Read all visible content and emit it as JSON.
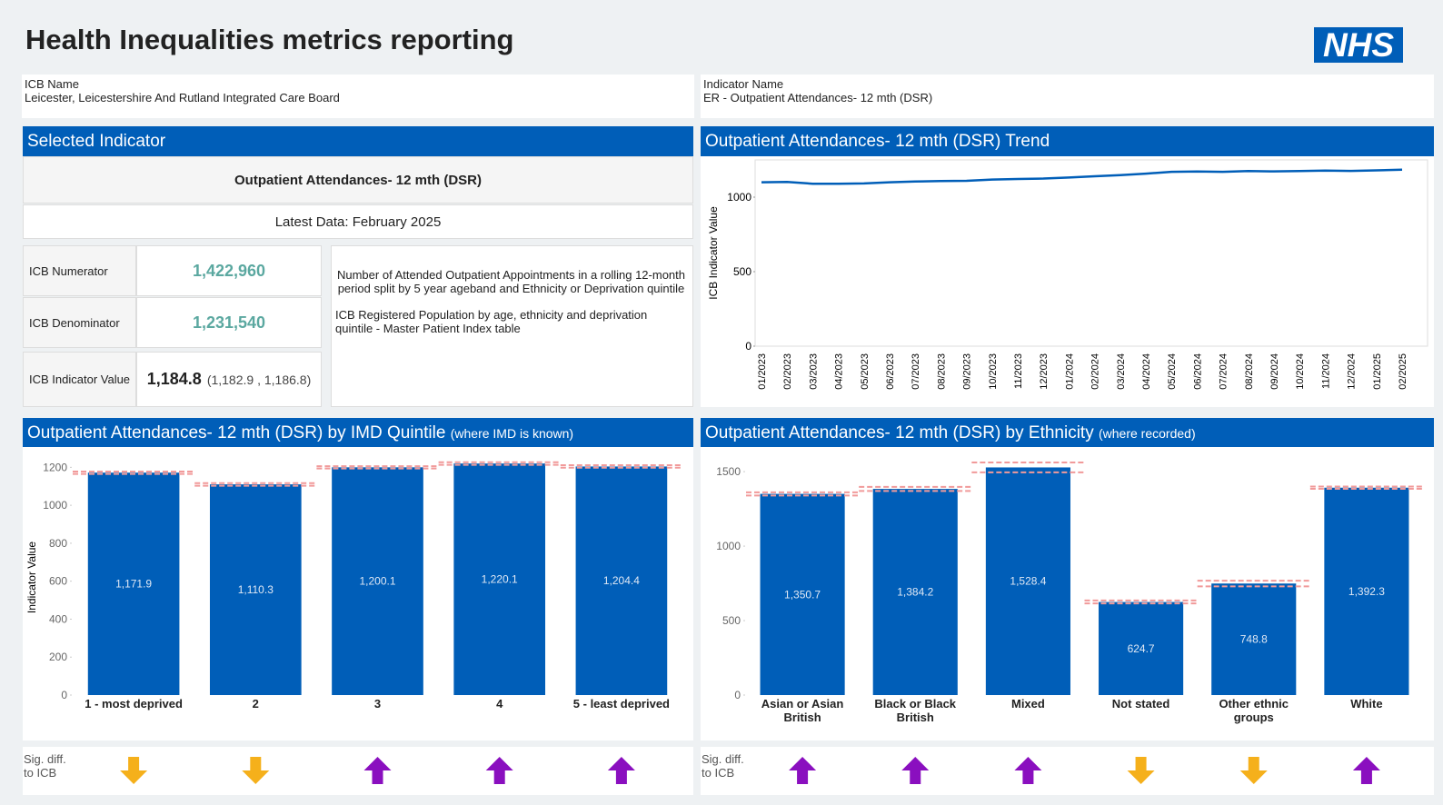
{
  "header": {
    "title": "Health Inequalities metrics reporting",
    "logo": "NHS"
  },
  "info": {
    "icb_label": "ICB Name",
    "icb_name": "Leicester, Leicestershire And Rutland Integrated Care Board",
    "indicator_label": "Indicator Name",
    "indicator_name": "ER - Outpatient Attendances- 12 mth (DSR)"
  },
  "selected": {
    "heading": "Selected Indicator",
    "indicator": "Outpatient Attendances- 12 mth (DSR)",
    "latest": "Latest Data: February 2025",
    "rows": [
      [
        "ICB Numerator",
        "1,422,960"
      ],
      [
        "ICB Denominator",
        "1,231,540"
      ],
      [
        "ICB Indicator Value",
        "1,184.8",
        "(1,182.9 , 1,186.8)"
      ]
    ],
    "description": [
      "Number of Attended Outpatient Appointments in a rolling 12-month period split by 5 year ageband and Ethnicity or Deprivation quintile",
      "ICB Registered Population by age, ethnicity and deprivation quintile - Master Patient Index table"
    ]
  },
  "sig_label": "Sig. diff. to ICB",
  "chart_data": [
    {
      "type": "line",
      "title": "Outpatient Attendances- 12 mth (DSR) Trend",
      "ylabel": "ICB Indicator Value",
      "x": [
        "01/2023",
        "02/2023",
        "03/2023",
        "04/2023",
        "05/2023",
        "06/2023",
        "07/2023",
        "08/2023",
        "09/2023",
        "10/2023",
        "11/2023",
        "12/2023",
        "01/2024",
        "02/2024",
        "03/2024",
        "04/2024",
        "05/2024",
        "06/2024",
        "07/2024",
        "08/2024",
        "09/2024",
        "10/2024",
        "11/2024",
        "12/2024",
        "01/2025",
        "02/2025"
      ],
      "values": [
        1100,
        1102,
        1090,
        1090,
        1092,
        1100,
        1105,
        1108,
        1110,
        1118,
        1122,
        1125,
        1132,
        1140,
        1148,
        1158,
        1170,
        1172,
        1170,
        1175,
        1173,
        1175,
        1178,
        1176,
        1180,
        1184.8
      ],
      "color": "#005eb8",
      "ylim": [
        0,
        1250
      ],
      "yticks": [
        0,
        500,
        1000
      ],
      "grid": false
    },
    {
      "type": "bar",
      "title": "Outpatient Attendances- 12 mth (DSR) by IMD Quintile",
      "subtitle": "(where IMD is known)",
      "ylabel": "Indicator Value",
      "categories": [
        "1 - most deprived",
        "2",
        "3",
        "4",
        "5 - least deprived"
      ],
      "values": [
        1171.9,
        1110.3,
        1200.1,
        1220.1,
        1204.4
      ],
      "value_labels": [
        "1,171.9",
        "1,110.3",
        "1,200.1",
        "1,220.1",
        "1,204.4"
      ],
      "ci_low": [
        1165,
        1103,
        1194,
        1213,
        1198
      ],
      "ci_high": [
        1178,
        1117,
        1206,
        1227,
        1211
      ],
      "color": "#005eb8",
      "ci_color": "#f19a9a",
      "ylim": [
        0,
        1240
      ],
      "yticks": [
        0,
        200,
        400,
        600,
        800,
        1000,
        1200
      ],
      "sig_diff": [
        "down",
        "down",
        "up",
        "up",
        "up"
      ],
      "sig_colors": {
        "up": "#8a0fbf",
        "down": "#f5b01b"
      }
    },
    {
      "type": "bar",
      "title": "Outpatient Attendances- 12 mth (DSR) by Ethnicity",
      "subtitle": "(where recorded)",
      "categories": [
        "Asian or Asian British",
        "Black or Black British",
        "Mixed",
        "Not stated",
        "Other ethnic groups",
        "White"
      ],
      "values": [
        1350.7,
        1384.2,
        1528.4,
        624.7,
        748.8,
        1392.3
      ],
      "value_labels": [
        "1,350.7",
        "1,384.2",
        "1,528.4",
        "624.7",
        "748.8",
        "1,392.3"
      ],
      "ci_low": [
        1340,
        1370,
        1495,
        615,
        730,
        1385
      ],
      "ci_high": [
        1361,
        1398,
        1562,
        635,
        768,
        1400
      ],
      "color": "#005eb8",
      "ci_color": "#f19a9a",
      "ylim": [
        0,
        1580
      ],
      "yticks": [
        0,
        500,
        1000,
        1500
      ],
      "sig_diff": [
        "up",
        "up",
        "up",
        "down",
        "down",
        "up"
      ],
      "sig_colors": {
        "up": "#8a0fbf",
        "down": "#f5b01b"
      }
    }
  ]
}
